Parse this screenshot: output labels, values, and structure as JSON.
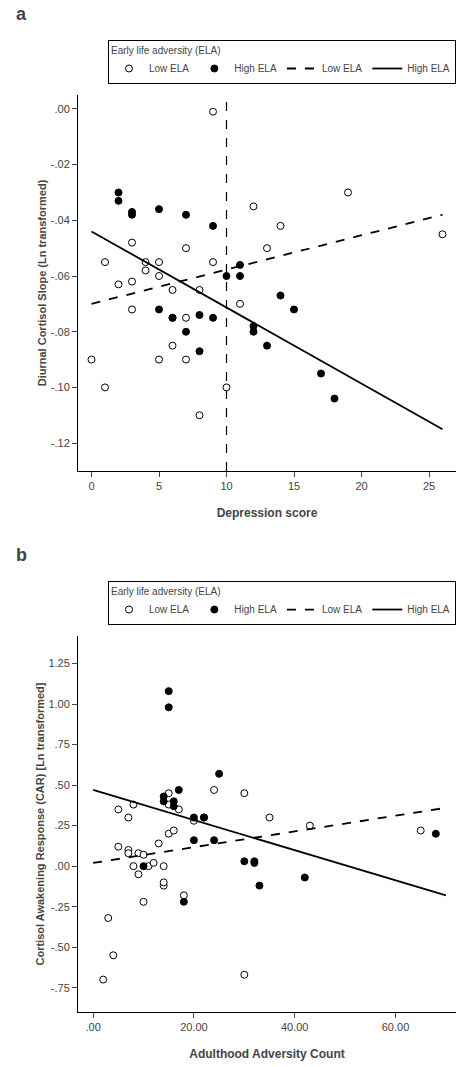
{
  "chart_data": [
    {
      "type": "scatter",
      "title": "a",
      "xlabel": "Depression score",
      "ylabel": "Diurnal Cortisol Slope (Ln transformed)",
      "xlim": [
        -1,
        27
      ],
      "ylim": [
        -0.13,
        0.005
      ],
      "xticks": [
        0,
        5,
        10,
        15,
        20,
        25
      ],
      "yticks": [
        {
          "value": 0.0,
          "label": ".00"
        },
        {
          "value": -0.02,
          "label": "-.02"
        },
        {
          "value": -0.04,
          "label": "-.04"
        },
        {
          "value": -0.06,
          "label": "-.06"
        },
        {
          "value": -0.08,
          "label": "-.08"
        },
        {
          "value": -0.1,
          "label": "-.10"
        },
        {
          "value": -0.12,
          "label": "-.12"
        }
      ],
      "vline_x": 10,
      "grid": false,
      "legend": "upper right",
      "legend_title": "Early life adversity (ELA)",
      "series": [
        {
          "name": "Low ELA",
          "type": "scatter",
          "color": "black",
          "marker": "circle-open",
          "x": [
            0,
            1,
            1,
            2,
            3,
            3,
            3,
            4,
            4,
            5,
            5,
            5,
            6,
            6,
            6,
            7,
            7,
            7,
            8,
            8,
            9,
            9,
            10,
            11,
            12,
            13,
            14,
            19,
            26
          ],
          "values": [
            -0.09,
            -0.1,
            -0.055,
            -0.063,
            -0.048,
            -0.072,
            -0.062,
            -0.058,
            -0.055,
            -0.06,
            -0.09,
            -0.055,
            -0.065,
            -0.085,
            -0.075,
            -0.09,
            -0.05,
            -0.075,
            -0.11,
            -0.065,
            -0.001,
            -0.055,
            -0.1,
            -0.07,
            -0.035,
            -0.05,
            -0.042,
            -0.03,
            -0.045
          ]
        },
        {
          "name": "High ELA",
          "type": "scatter",
          "color": "black",
          "marker": "circle",
          "x": [
            2,
            2,
            3,
            3,
            5,
            5,
            6,
            7,
            7,
            8,
            8,
            9,
            9,
            10,
            11,
            11,
            12,
            12,
            13,
            14,
            15,
            17,
            18
          ],
          "values": [
            -0.03,
            -0.033,
            -0.038,
            -0.037,
            -0.036,
            -0.072,
            -0.075,
            -0.08,
            -0.038,
            -0.087,
            -0.074,
            -0.042,
            -0.075,
            -0.06,
            -0.056,
            -0.06,
            -0.08,
            -0.078,
            -0.085,
            -0.067,
            -0.072,
            -0.095,
            -0.104
          ]
        },
        {
          "name": "Low ELA",
          "type": "line",
          "color": "black",
          "line_style": "dashed",
          "x": [
            0,
            26
          ],
          "values": [
            -0.07,
            -0.038
          ]
        },
        {
          "name": "High ELA",
          "type": "line",
          "color": "black",
          "line_style": "solid",
          "x": [
            0,
            26
          ],
          "values": [
            -0.044,
            -0.115
          ]
        }
      ]
    },
    {
      "type": "scatter",
      "title": "b",
      "xlabel": "Adulthood Adversity Count",
      "ylabel": "Cortisol Awakening Response (CAR) [Ln transformed]",
      "xlim": [
        -3,
        72
      ],
      "ylim": [
        -0.9,
        1.42
      ],
      "xticks": [
        {
          "value": 0,
          "label": ".00"
        },
        {
          "value": 20,
          "label": "20.00"
        },
        {
          "value": 40,
          "label": "40.00"
        },
        {
          "value": 60,
          "label": "60.00"
        }
      ],
      "yticks": [
        {
          "value": -0.75,
          "label": "-.75"
        },
        {
          "value": -0.5,
          "label": "-.50"
        },
        {
          "value": -0.25,
          "label": "-.25"
        },
        {
          "value": 0.0,
          "label": ".00"
        },
        {
          "value": 0.25,
          "label": ".25"
        },
        {
          "value": 0.5,
          "label": ".50"
        },
        {
          "value": 0.75,
          "label": ".75"
        },
        {
          "value": 1.0,
          "label": "1.00"
        },
        1.25
      ],
      "grid": false,
      "legend": "upper right",
      "legend_title": "Early life adversity (ELA)",
      "series": [
        {
          "name": "Low ELA",
          "type": "scatter",
          "color": "black",
          "marker": "circle-open",
          "x": [
            2,
            3,
            4,
            5,
            5,
            7,
            7,
            7,
            8,
            8,
            9,
            9,
            10,
            10,
            11,
            12,
            13,
            14,
            14,
            14,
            15,
            15,
            15,
            16,
            17,
            18,
            20,
            22,
            24,
            30,
            30,
            35,
            43,
            65
          ],
          "values": [
            -0.7,
            -0.32,
            -0.55,
            0.12,
            0.35,
            0.3,
            0.1,
            0.08,
            0.38,
            0.0,
            0.08,
            -0.05,
            -0.22,
            0.07,
            0.0,
            0.02,
            0.14,
            -0.12,
            0.0,
            -0.1,
            0.38,
            0.45,
            0.2,
            0.22,
            0.35,
            -0.18,
            0.28,
            0.3,
            0.47,
            0.45,
            -0.67,
            0.3,
            0.25,
            0.22
          ]
        },
        {
          "name": "High ELA",
          "type": "scatter",
          "color": "black",
          "marker": "circle",
          "x": [
            10,
            14,
            14,
            15,
            15,
            16,
            16,
            17,
            18,
            20,
            20,
            22,
            24,
            25,
            30,
            32,
            32,
            33,
            42,
            68
          ],
          "values": [
            0.0,
            0.43,
            0.4,
            1.08,
            0.98,
            0.4,
            0.37,
            0.47,
            -0.22,
            0.3,
            0.16,
            0.3,
            0.16,
            0.57,
            0.03,
            0.03,
            0.02,
            -0.12,
            -0.07,
            0.2
          ]
        },
        {
          "name": "Low ELA",
          "type": "line",
          "color": "black",
          "line_style": "dashed",
          "x": [
            0,
            70
          ],
          "values": [
            0.02,
            0.36
          ]
        },
        {
          "name": "High ELA",
          "type": "line",
          "color": "black",
          "line_style": "solid",
          "x": [
            0,
            70
          ],
          "values": [
            0.47,
            -0.18
          ]
        }
      ]
    }
  ]
}
